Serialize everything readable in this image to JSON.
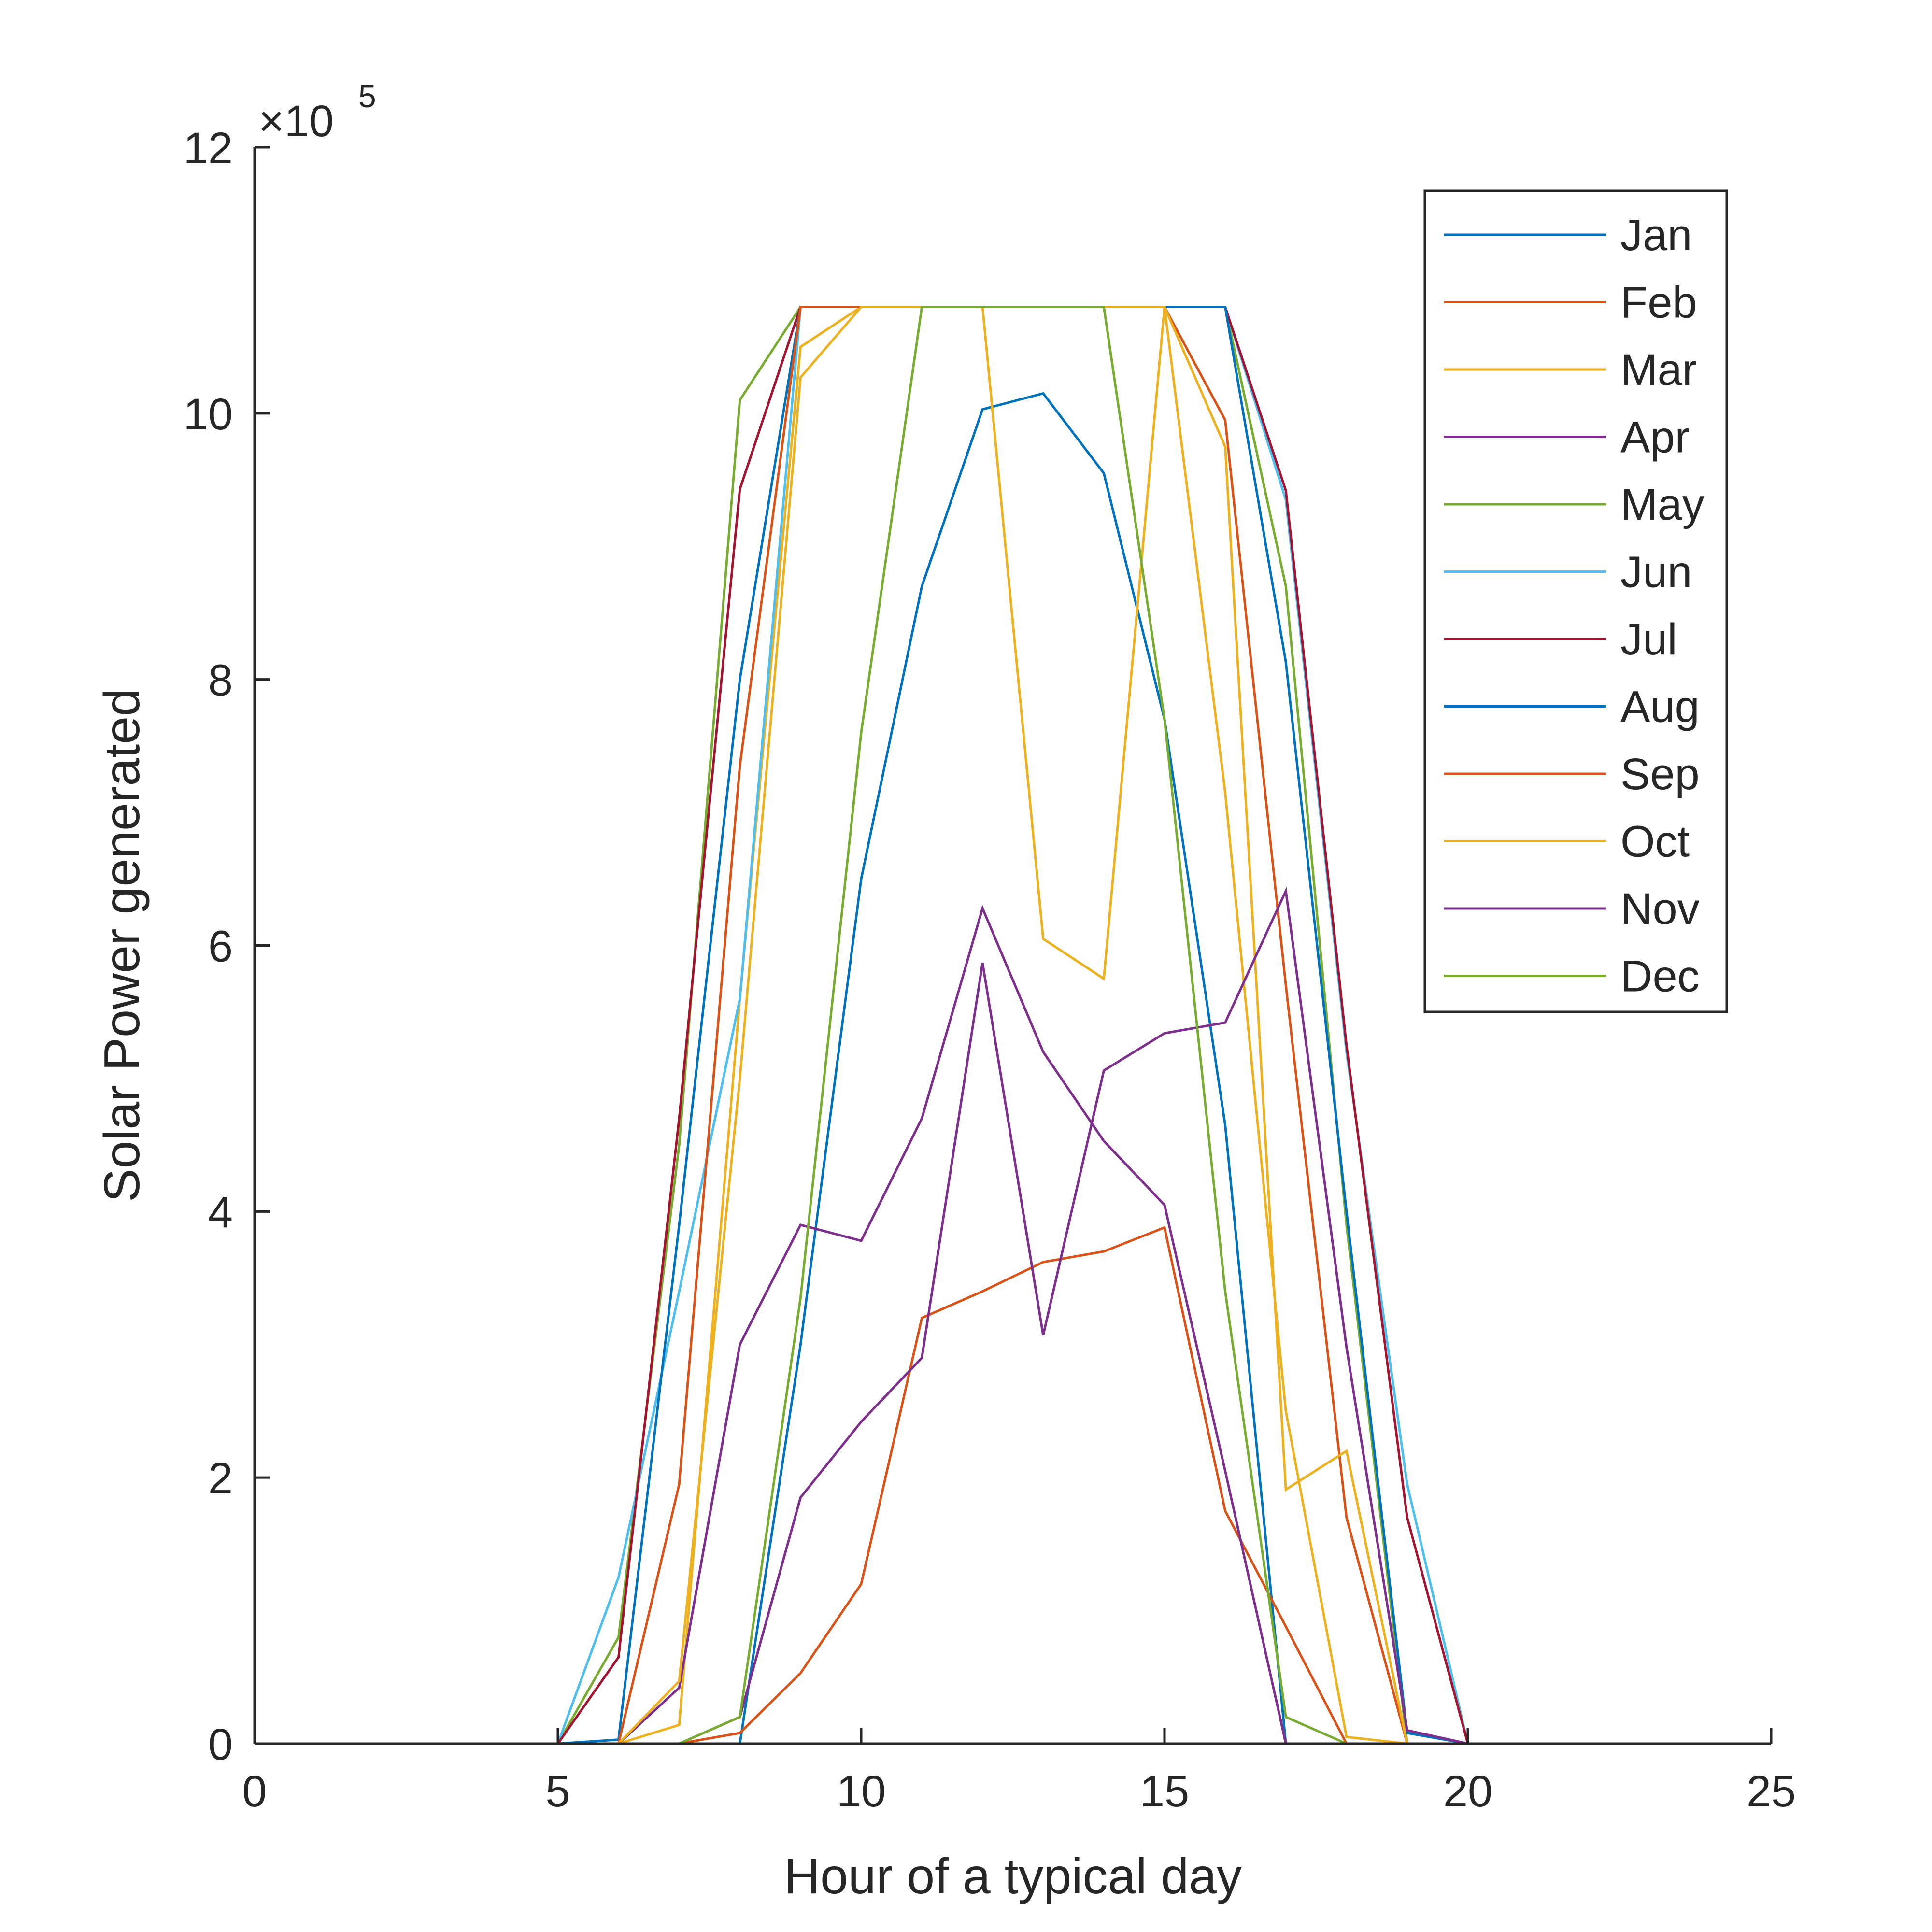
{
  "chart_data": {
    "type": "line",
    "title": "",
    "xlabel": "Hour of a typical day",
    "ylabel": "Solar Power generated",
    "y_exponent_label": {
      "base": "×10",
      "exponent": "5"
    },
    "xlim": [
      0,
      25
    ],
    "ylim": [
      0,
      1200000
    ],
    "xticks": [
      0,
      5,
      10,
      15,
      20,
      25
    ],
    "xtick_labels": [
      "0",
      "5",
      "10",
      "15",
      "20",
      "25"
    ],
    "yticks": [
      0,
      200000,
      400000,
      600000,
      800000,
      1000000,
      1200000
    ],
    "ytick_labels": [
      "0",
      "2",
      "4",
      "6",
      "8",
      "10",
      "12"
    ],
    "grid": false,
    "legend_position": "top-right",
    "x": [
      1,
      2,
      3,
      4,
      5,
      6,
      7,
      8,
      9,
      10,
      11,
      12,
      13,
      14,
      15,
      16,
      17,
      18,
      19,
      20,
      21,
      22,
      23,
      24
    ],
    "series": [
      {
        "name": "Jan",
        "color": "#0072BD",
        "values": [
          0,
          0,
          0,
          0,
          0,
          0,
          0,
          0,
          300000,
          650000,
          870000,
          1003000,
          1015000,
          955000,
          770000,
          465000,
          0,
          0,
          0,
          0,
          0,
          0,
          0,
          0
        ]
      },
      {
        "name": "Feb",
        "color": "#D95319",
        "values": [
          0,
          0,
          0,
          0,
          0,
          0,
          0,
          8000,
          53000,
          120000,
          320000,
          340000,
          362000,
          370000,
          388000,
          175000,
          88000,
          0,
          0,
          0,
          0,
          0,
          0,
          0
        ]
      },
      {
        "name": "Mar",
        "color": "#EDB120",
        "values": [
          0,
          0,
          0,
          0,
          0,
          0,
          14000,
          560000,
          1050000,
          1080000,
          1080000,
          1080000,
          605000,
          575000,
          1080000,
          715000,
          250000,
          5000,
          0,
          0,
          0,
          0,
          0,
          0
        ]
      },
      {
        "name": "Apr",
        "color": "#7E2F8E",
        "values": [
          0,
          0,
          0,
          0,
          0,
          0,
          42000,
          300000,
          390000,
          378000,
          470000,
          628000,
          520000,
          453000,
          405000,
          205000,
          0,
          0,
          0,
          0,
          0,
          0,
          0,
          0
        ]
      },
      {
        "name": "May",
        "color": "#77AC30",
        "values": [
          0,
          0,
          0,
          0,
          0,
          80000,
          450000,
          1010000,
          1080000,
          1080000,
          1080000,
          1080000,
          1080000,
          1080000,
          1080000,
          1080000,
          870000,
          390000,
          0,
          0,
          0,
          0,
          0,
          0
        ]
      },
      {
        "name": "Jun",
        "color": "#4DBEEE",
        "values": [
          0,
          0,
          0,
          0,
          0,
          125000,
          340000,
          560000,
          1080000,
          1080000,
          1080000,
          1080000,
          1080000,
          1080000,
          1080000,
          1080000,
          935000,
          520000,
          195000,
          0,
          0,
          0,
          0,
          0
        ]
      },
      {
        "name": "Jul",
        "color": "#A2142F",
        "values": [
          0,
          0,
          0,
          0,
          0,
          65000,
          470000,
          943000,
          1080000,
          1080000,
          1080000,
          1080000,
          1080000,
          1080000,
          1080000,
          1080000,
          942000,
          525000,
          170000,
          0,
          0,
          0,
          0,
          0
        ]
      },
      {
        "name": "Aug",
        "color": "#0072BD",
        "values": [
          0,
          0,
          0,
          0,
          0,
          3000,
          390000,
          800000,
          1080000,
          1080000,
          1080000,
          1080000,
          1080000,
          1080000,
          1080000,
          1080000,
          813000,
          400000,
          8000,
          0,
          0,
          0,
          0,
          0
        ]
      },
      {
        "name": "Sep",
        "color": "#D95319",
        "values": [
          0,
          0,
          0,
          0,
          0,
          0,
          195000,
          735000,
          1080000,
          1080000,
          1080000,
          1080000,
          1080000,
          1080000,
          1080000,
          995000,
          570000,
          170000,
          0,
          0,
          0,
          0,
          0,
          0
        ]
      },
      {
        "name": "Oct",
        "color": "#EDB120",
        "values": [
          0,
          0,
          0,
          0,
          0,
          0,
          47000,
          500000,
          1027000,
          1080000,
          1080000,
          1080000,
          1080000,
          1080000,
          1080000,
          975000,
          191000,
          220000,
          0,
          0,
          0,
          0,
          0,
          0
        ]
      },
      {
        "name": "Nov",
        "color": "#7E2F8E",
        "values": [
          0,
          0,
          0,
          0,
          0,
          0,
          0,
          20000,
          185000,
          242000,
          290000,
          587000,
          307000,
          506000,
          534000,
          542000,
          641000,
          298000,
          10000,
          0,
          0,
          0,
          0,
          0
        ]
      },
      {
        "name": "Dec",
        "color": "#77AC30",
        "values": [
          0,
          0,
          0,
          0,
          0,
          0,
          0,
          20000,
          335000,
          760000,
          1080000,
          1080000,
          1080000,
          1080000,
          770000,
          340000,
          20000,
          0,
          0,
          0,
          0,
          0,
          0,
          0
        ]
      }
    ]
  }
}
